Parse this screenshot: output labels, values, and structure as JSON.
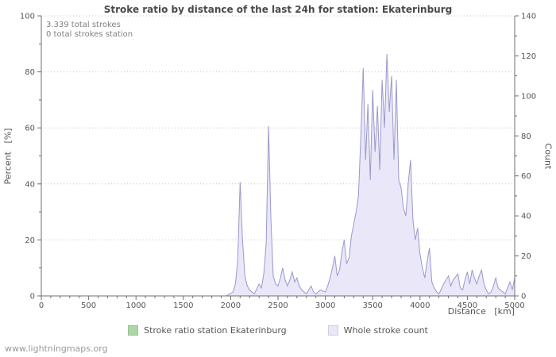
{
  "chart": {
    "title": "Stroke ratio by distance of the last 24h for station: Ekaterinburg",
    "annotations": [
      "3.339 total strokes",
      "0 total strokes station"
    ],
    "left_axis_label": "Percent   [%]",
    "right_axis_label": "Count",
    "x_axis_label": "Distance   [km]",
    "legend": [
      {
        "label": "Stroke ratio station Ekaterinburg",
        "color": "#aed6a6"
      },
      {
        "label": "Whole stroke count",
        "color": "#e9e7f8"
      }
    ]
  },
  "footer": {
    "site": "www.lightningmaps.org"
  },
  "chart_data": {
    "type": "area",
    "title": "Stroke ratio by distance of the last 24h for station: Ekaterinburg",
    "xlabel": "Distance [km]",
    "ylabel_left": "Percent [%]",
    "ylabel_right": "Count",
    "x_range": [
      0,
      5000
    ],
    "left_range": [
      0,
      100
    ],
    "right_range": [
      0,
      140
    ],
    "x_ticks": [
      0,
      500,
      1000,
      1500,
      2000,
      2500,
      3000,
      3500,
      4000,
      4500,
      5000
    ],
    "left_ticks": [
      0,
      20,
      40,
      60,
      80,
      100
    ],
    "right_ticks": [
      0,
      20,
      40,
      60,
      80,
      100,
      120,
      140
    ],
    "grid": "horizontal dotted lines at left-axis multiples of 20",
    "legend_position": "bottom center",
    "total_strokes": "3.339",
    "total_strokes_station": 0,
    "series": [
      {
        "name": "Stroke ratio station Ekaterinburg",
        "axis": "left",
        "type": "area",
        "fill": "#aed6a6",
        "stroke": "#7fb877",
        "points": []
      },
      {
        "name": "Whole stroke count",
        "axis": "right",
        "type": "area",
        "fill": "#e9e7f8",
        "stroke": "#9a99cd",
        "points": [
          [
            0,
            0
          ],
          [
            250,
            0
          ],
          [
            500,
            0
          ],
          [
            750,
            0
          ],
          [
            1000,
            0
          ],
          [
            1250,
            0
          ],
          [
            1500,
            0
          ],
          [
            1750,
            0
          ],
          [
            1950,
            0
          ],
          [
            2025,
            2
          ],
          [
            2050,
            6
          ],
          [
            2075,
            18
          ],
          [
            2100,
            57
          ],
          [
            2125,
            28
          ],
          [
            2150,
            10
          ],
          [
            2175,
            5
          ],
          [
            2200,
            3
          ],
          [
            2250,
            1
          ],
          [
            2300,
            6
          ],
          [
            2325,
            4
          ],
          [
            2350,
            11
          ],
          [
            2375,
            26
          ],
          [
            2400,
            85
          ],
          [
            2425,
            38
          ],
          [
            2450,
            10
          ],
          [
            2475,
            6
          ],
          [
            2500,
            5
          ],
          [
            2525,
            9
          ],
          [
            2550,
            14
          ],
          [
            2575,
            8
          ],
          [
            2600,
            5
          ],
          [
            2625,
            8
          ],
          [
            2650,
            12
          ],
          [
            2675,
            7
          ],
          [
            2700,
            9
          ],
          [
            2725,
            5
          ],
          [
            2750,
            3
          ],
          [
            2800,
            1
          ],
          [
            2850,
            5
          ],
          [
            2875,
            2
          ],
          [
            2900,
            1
          ],
          [
            2950,
            3
          ],
          [
            3000,
            2
          ],
          [
            3025,
            5
          ],
          [
            3050,
            9
          ],
          [
            3075,
            14
          ],
          [
            3100,
            20
          ],
          [
            3125,
            10
          ],
          [
            3150,
            13
          ],
          [
            3175,
            22
          ],
          [
            3200,
            28
          ],
          [
            3225,
            16
          ],
          [
            3250,
            19
          ],
          [
            3275,
            30
          ],
          [
            3300,
            36
          ],
          [
            3325,
            42
          ],
          [
            3350,
            50
          ],
          [
            3375,
            80
          ],
          [
            3400,
            114
          ],
          [
            3425,
            68
          ],
          [
            3450,
            96
          ],
          [
            3475,
            58
          ],
          [
            3500,
            103
          ],
          [
            3525,
            72
          ],
          [
            3550,
            95
          ],
          [
            3575,
            63
          ],
          [
            3600,
            108
          ],
          [
            3625,
            84
          ],
          [
            3650,
            121
          ],
          [
            3675,
            92
          ],
          [
            3700,
            110
          ],
          [
            3725,
            68
          ],
          [
            3750,
            108
          ],
          [
            3775,
            58
          ],
          [
            3800,
            54
          ],
          [
            3825,
            44
          ],
          [
            3850,
            40
          ],
          [
            3875,
            56
          ],
          [
            3900,
            68
          ],
          [
            3925,
            38
          ],
          [
            3950,
            28
          ],
          [
            3975,
            34
          ],
          [
            4000,
            21
          ],
          [
            4025,
            14
          ],
          [
            4050,
            9
          ],
          [
            4075,
            17
          ],
          [
            4100,
            24
          ],
          [
            4125,
            7
          ],
          [
            4150,
            4
          ],
          [
            4175,
            2
          ],
          [
            4200,
            1
          ],
          [
            4250,
            6
          ],
          [
            4300,
            10
          ],
          [
            4325,
            5
          ],
          [
            4350,
            8
          ],
          [
            4400,
            11
          ],
          [
            4425,
            4
          ],
          [
            4450,
            3
          ],
          [
            4475,
            8
          ],
          [
            4500,
            12
          ],
          [
            4525,
            6
          ],
          [
            4550,
            13
          ],
          [
            4575,
            9
          ],
          [
            4600,
            6
          ],
          [
            4625,
            10
          ],
          [
            4650,
            13
          ],
          [
            4675,
            6
          ],
          [
            4700,
            3
          ],
          [
            4725,
            1
          ],
          [
            4750,
            2
          ],
          [
            4775,
            5
          ],
          [
            4800,
            9
          ],
          [
            4825,
            4
          ],
          [
            4850,
            3
          ],
          [
            4900,
            1
          ],
          [
            4925,
            4
          ],
          [
            4950,
            7
          ],
          [
            4975,
            3
          ],
          [
            5000,
            9
          ]
        ]
      }
    ]
  }
}
